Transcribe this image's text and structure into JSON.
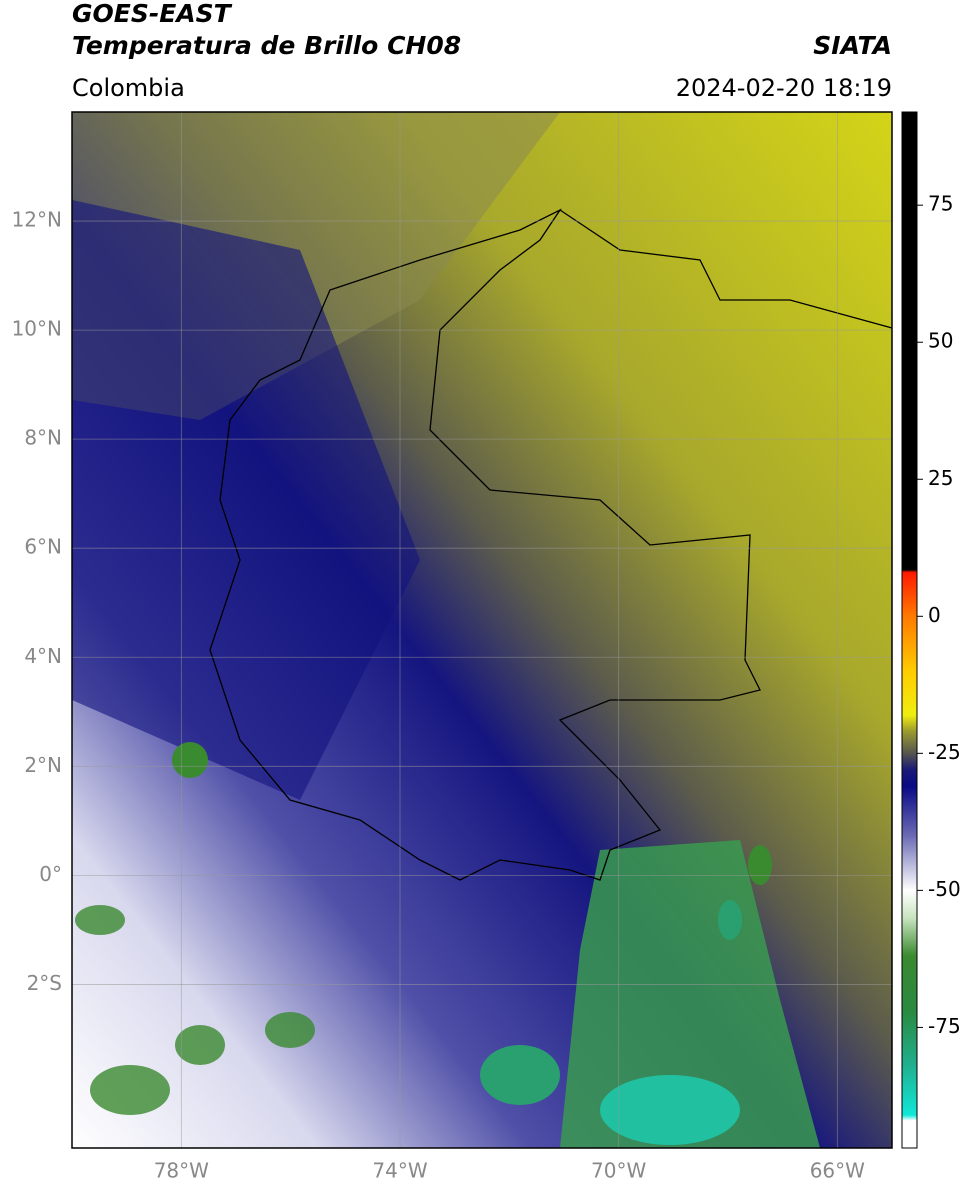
{
  "header": {
    "title_line1": "GOES-EAST",
    "title_line2": "Temperatura de Brillo CH08",
    "brand": "SIATA",
    "region": "Colombia",
    "timestamp": "2024-02-20 18:19"
  },
  "map": {
    "lonlim": [
      -80,
      -65
    ],
    "latlim": [
      -5,
      14
    ],
    "grid": true,
    "lat_ticks": [
      {
        "value": 12,
        "label": "12°N"
      },
      {
        "value": 10,
        "label": "10°N"
      },
      {
        "value": 8,
        "label": "8°N"
      },
      {
        "value": 6,
        "label": "6°N"
      },
      {
        "value": 4,
        "label": "4°N"
      },
      {
        "value": 2,
        "label": "2°N"
      },
      {
        "value": 0,
        "label": "0°"
      },
      {
        "value": -2,
        "label": "2°S"
      }
    ],
    "lon_ticks": [
      {
        "value": -78,
        "label": "78°W"
      },
      {
        "value": -74,
        "label": "74°W"
      },
      {
        "value": -70,
        "label": "70°W"
      },
      {
        "value": -66,
        "label": "66°W"
      }
    ]
  },
  "colorbar": {
    "clim": [
      -97,
      92
    ],
    "ticks": [
      75,
      50,
      25,
      0,
      -25,
      -50,
      -75
    ],
    "colormap": [
      {
        "value": 92,
        "color": "#000000"
      },
      {
        "value": 8.5,
        "color": "#000000"
      },
      {
        "value": 8,
        "color": "#ff1a00"
      },
      {
        "value": 0,
        "color": "#ff7a00"
      },
      {
        "value": -10,
        "color": "#ffcc00"
      },
      {
        "value": -18,
        "color": "#f0ee10"
      },
      {
        "value": -21,
        "color": "#9a9a30"
      },
      {
        "value": -25,
        "color": "#55554f"
      },
      {
        "value": -28,
        "color": "#1a1a78"
      },
      {
        "value": -31,
        "color": "#0a0a85"
      },
      {
        "value": -40,
        "color": "#6a6ab4"
      },
      {
        "value": -50,
        "color": "#ffffff"
      },
      {
        "value": -55,
        "color": "#c8e4c0"
      },
      {
        "value": -62,
        "color": "#3a8a30"
      },
      {
        "value": -72,
        "color": "#2a8a40"
      },
      {
        "value": -82,
        "color": "#20b090"
      },
      {
        "value": -91,
        "color": "#10e8d8"
      },
      {
        "value": -92,
        "color": "#ffffff"
      },
      {
        "value": -97,
        "color": "#ffffff"
      }
    ]
  }
}
